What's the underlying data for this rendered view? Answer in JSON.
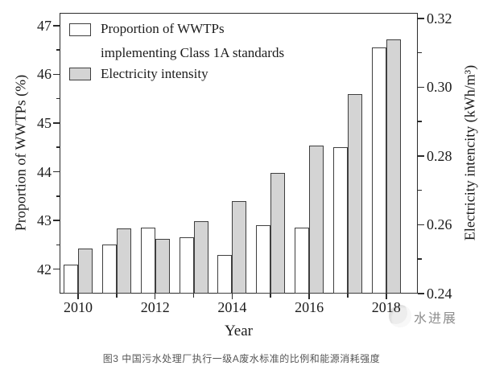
{
  "figure": {
    "caption": "图3 中国污水处理厂执行一级A废水标准的比例和能源消耗强度",
    "watermark_text": "水进展"
  },
  "colors": {
    "bar_white_fill": "#ffffff",
    "bar_gray_fill": "#d4d4d4",
    "bar_border": "#3f3f3f",
    "axis": "#2b2b2b",
    "caption_text": "#565656",
    "watermark_text": "#8d8d8d"
  },
  "chart_data": {
    "type": "bar",
    "title": "",
    "xlabel": "Year",
    "categories": [
      2010,
      2011,
      2012,
      2013,
      2014,
      2015,
      2016,
      2017,
      2018
    ],
    "x_labeled_years": [
      "2010",
      "2012",
      "2014",
      "2016",
      "2018"
    ],
    "series": [
      {
        "name": "Proportion of WWTPs implementing Class 1A standards",
        "legend_lines": [
          "Proportion of WWTPs",
          "implementing Class 1A standards"
        ],
        "axis": "left",
        "fill": "#ffffff",
        "values": [
          42.1,
          42.5,
          42.85,
          42.65,
          42.3,
          42.9,
          42.85,
          44.5,
          46.55
        ]
      },
      {
        "name": "Electricity intensity",
        "legend_lines": [
          "Electricity intensity"
        ],
        "axis": "right",
        "fill": "#d4d4d4",
        "values": [
          0.253,
          0.259,
          0.256,
          0.261,
          0.267,
          0.275,
          0.283,
          0.298,
          0.314
        ]
      }
    ],
    "left_axis": {
      "title": "Proportion of WWTPs (%)",
      "range": [
        41.5,
        47.26
      ],
      "major_ticks": [
        42,
        43,
        44,
        45,
        46,
        47
      ],
      "major_tick_labels": [
        "42",
        "43",
        "44",
        "45",
        "46",
        "47"
      ],
      "minor_ticks": [
        42.5,
        43.5,
        44.5,
        45.5,
        46.5
      ]
    },
    "right_axis": {
      "title": "Electricity intencity (kWh/m³)",
      "range": [
        0.24,
        0.3216
      ],
      "major_ticks": [
        0.24,
        0.26,
        0.28,
        0.3,
        0.32
      ],
      "major_tick_labels": [
        "0.24",
        "0.26",
        "0.28",
        "0.30",
        "0.32"
      ],
      "minor_ticks": [
        0.25,
        0.27,
        0.29,
        0.31
      ]
    },
    "legend_position": "top-left",
    "grid": false
  }
}
